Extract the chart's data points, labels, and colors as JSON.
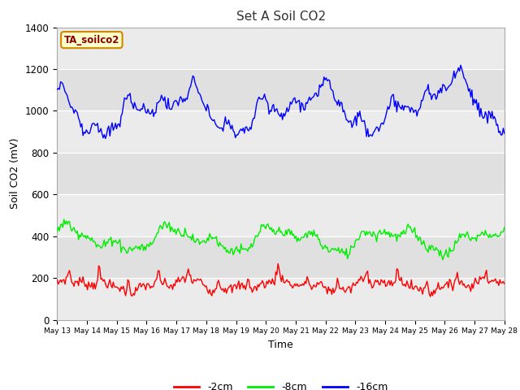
{
  "title": "Set A Soil CO2",
  "xlabel": "Time",
  "ylabel": "Soil CO2 (mV)",
  "ylim": [
    0,
    1400
  ],
  "yticks": [
    0,
    200,
    400,
    600,
    800,
    1000,
    1200,
    1400
  ],
  "legend_label": "TA_soilco2",
  "series_labels": [
    "-2cm",
    "-8cm",
    "-16cm"
  ],
  "series_colors": [
    "#ff0000",
    "#00ee00",
    "#0000ff"
  ],
  "background_color": "#ffffff",
  "plot_bg_color": "#e0e0e0",
  "light_band_color": "#ebebeb",
  "x_start": 13,
  "x_end": 28,
  "n_points": 400,
  "xtick_vals": [
    13,
    14,
    15,
    16,
    17,
    18,
    19,
    20,
    21,
    22,
    23,
    24,
    25,
    26,
    27,
    28
  ],
  "xtick_labels": [
    "May 13",
    "May 14",
    "May 15",
    "May 16",
    "May 17",
    "May 18",
    "May 19",
    "May 20",
    "May 21",
    "May 22",
    "May 23",
    "May 24",
    "May 25",
    "May 26",
    "May 27",
    "May 28"
  ]
}
